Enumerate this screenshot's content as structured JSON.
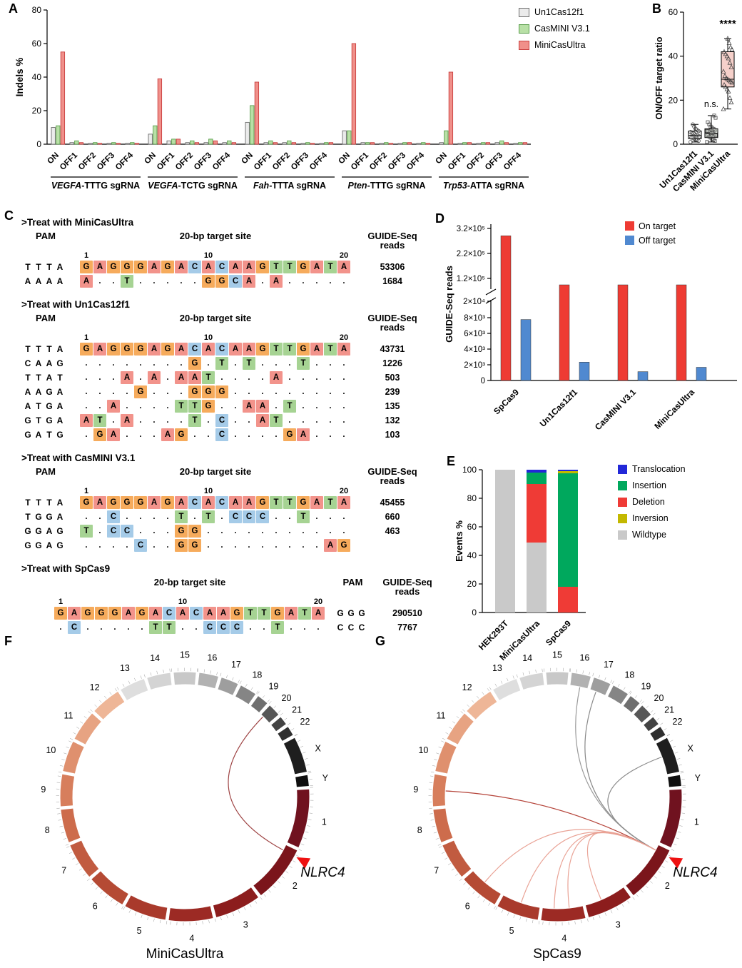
{
  "panel_letters": {
    "a": "A",
    "b": "B",
    "c": "C",
    "d": "D",
    "e": "E",
    "f": "F",
    "g": "G"
  },
  "chart_data": [
    {
      "id": "A",
      "type": "bar",
      "ylabel": "Indels %",
      "ylim": [
        0,
        80
      ],
      "yticks": [
        0,
        20,
        40,
        60,
        80
      ],
      "group_categories": [
        "ON",
        "OFF1",
        "OFF2",
        "OFF3",
        "OFF4"
      ],
      "groups": [
        {
          "gene": "VEGFA",
          "rest": "-TTTG sgRNA"
        },
        {
          "gene": "VEGFA",
          "rest": "-TCTG sgRNA"
        },
        {
          "gene": "Fah",
          "rest": "-TTTA sgRNA"
        },
        {
          "gene": "Pten",
          "rest": "-TTTG sgRNA"
        },
        {
          "gene": "Trp53",
          "rest": "-ATTA sgRNA"
        }
      ],
      "series": [
        {
          "name": "Un1Cas12f1",
          "color": "#ebebeb",
          "border": "#6e6e6e",
          "values": [
            [
              10,
              1,
              0.5,
              0.5,
              0.5
            ],
            [
              6,
              2,
              1,
              1,
              1
            ],
            [
              13,
              1,
              1,
              0.5,
              0.5
            ],
            [
              8,
              1,
              0.5,
              0.5,
              0.5
            ],
            [
              1,
              0.5,
              0.5,
              1,
              0.5
            ]
          ]
        },
        {
          "name": "CasMINI V3.1",
          "color": "#b8e0a6",
          "border": "#5a9e4c",
          "values": [
            [
              11,
              2,
              1,
              1,
              1
            ],
            [
              11,
              3,
              2,
              3,
              2
            ],
            [
              23,
              2,
              2,
              1,
              1
            ],
            [
              8,
              1,
              1,
              1,
              1
            ],
            [
              8,
              1,
              1,
              2,
              1
            ]
          ]
        },
        {
          "name": "MiniCasUltra",
          "color": "#f0908a",
          "border": "#c94040",
          "values": [
            [
              55,
              1,
              0.5,
              0.5,
              0.5
            ],
            [
              39,
              3,
              1,
              2,
              1
            ],
            [
              37,
              1,
              1,
              0.5,
              1
            ],
            [
              60,
              1,
              0.5,
              1,
              0.5
            ],
            [
              43,
              1,
              1,
              1,
              1
            ]
          ]
        }
      ]
    },
    {
      "id": "B",
      "type": "box",
      "ylabel": "ON/OFF target ratio",
      "ylim": [
        0,
        60
      ],
      "yticks": [
        0,
        20,
        40,
        60
      ],
      "categories": [
        "Un1Cas12f1",
        "CasMINI V3.1",
        "MiniCasUltra"
      ],
      "boxes": [
        {
          "min": 1,
          "q1": 2.5,
          "median": 4,
          "q3": 6,
          "max": 9,
          "fill": "#f2f2f2",
          "marker": "circle",
          "annotation": "",
          "points": [
            1,
            1.5,
            2,
            2,
            2.5,
            3,
            3,
            3.5,
            4,
            4,
            4.5,
            5,
            5,
            5.5,
            6,
            6.5,
            7,
            8,
            9
          ]
        },
        {
          "min": 1,
          "q1": 3,
          "median": 5,
          "q3": 7,
          "max": 13,
          "fill": "#edf2ea",
          "marker": "square",
          "annotation": "n.s.",
          "points": [
            1,
            1.5,
            2,
            2.5,
            3,
            3.5,
            4,
            4,
            4.5,
            5,
            5,
            5.5,
            6,
            6,
            6.5,
            7,
            7.5,
            8,
            9,
            10,
            12,
            13
          ]
        },
        {
          "min": 16,
          "q1": 26,
          "median": 29.5,
          "q3": 42,
          "max": 48,
          "fill": "#f5d0ca",
          "marker": "triangle",
          "annotation": "****",
          "points": [
            16,
            19,
            21,
            24,
            25,
            26,
            27,
            28,
            28.5,
            29,
            29.5,
            30,
            31,
            33,
            35,
            37,
            39,
            40,
            41,
            42,
            43,
            44,
            46,
            48
          ]
        }
      ]
    },
    {
      "id": "D",
      "type": "bar",
      "ylabel": "GUIDE-Seq reads",
      "categories": [
        "SpCas9",
        "Un1Cas12f1",
        "CasMINI V3.1",
        "MiniCasUltra"
      ],
      "series": [
        {
          "name": "On target",
          "color": "#ee3b33",
          "values": [
            290510,
            43731,
            45455,
            53306
          ]
        },
        {
          "name": "Off target",
          "color": "#5089d0",
          "values": [
            7767,
            2338,
            1123,
            1684
          ]
        }
      ],
      "broken_axis": {
        "lower_ticks": [
          "0",
          "2×10³",
          "4×10³",
          "6×10³",
          "8×10³",
          "2×10⁴"
        ],
        "lower_values": [
          0,
          2000,
          4000,
          6000,
          8000,
          20000
        ],
        "upper_ticks": [
          "1.2×10⁵",
          "2.2×10⁵",
          "3.2×10⁵"
        ],
        "upper_values": [
          120000,
          220000,
          320000
        ]
      }
    },
    {
      "id": "E",
      "type": "stacked_bar",
      "ylabel": "Events %",
      "ylim": [
        0,
        100
      ],
      "yticks": [
        0,
        20,
        40,
        60,
        80,
        100
      ],
      "categories": [
        "HEK293T",
        "MiniCasUltra",
        "SpCas9"
      ],
      "series": [
        {
          "name": "Wildtype",
          "color": "#c9c9c9",
          "values": [
            100,
            49,
            0
          ]
        },
        {
          "name": "Deletion",
          "color": "#ef3b36",
          "values": [
            0,
            41,
            18
          ]
        },
        {
          "name": "Insertion",
          "color": "#00a85d",
          "values": [
            0,
            8,
            79.5
          ]
        },
        {
          "name": "Inversion",
          "color": "#c3b800",
          "values": [
            0,
            0,
            1.5
          ]
        },
        {
          "name": "Translocation",
          "color": "#2228d8",
          "values": [
            0,
            2,
            1
          ]
        }
      ],
      "legend_order": [
        "Translocation",
        "Insertion",
        "Deletion",
        "Inversion",
        "Wildtype"
      ]
    }
  ],
  "panel_c": {
    "base_colors": {
      "A": "#f2938b",
      "G": "#f6ab5c",
      "C": "#a5cbe8",
      "T": "#a6d393"
    },
    "blocks": [
      {
        "title": ">Treat with MiniCasUltra",
        "pam_side": "left",
        "headers": {
          "pam": "PAM",
          "site": "20-bp target site",
          "reads": "GUIDE-Seq reads"
        },
        "ruler": [
          "1",
          "10",
          "20"
        ],
        "rows": [
          {
            "pam": "TTTA",
            "seq": "GAGGGAGACACAAGTTGATA",
            "reads": "53306",
            "ref": true
          },
          {
            "pam": "AAAA",
            "seq": "A..T.....GGCA.A.....",
            "reads": "1684"
          }
        ]
      },
      {
        "title": ">Treat with Un1Cas12f1",
        "pam_side": "left",
        "headers": {
          "pam": "PAM",
          "site": "20-bp target site",
          "reads": "GUIDE-Seq\nreads"
        },
        "ruler": [
          "1",
          "10",
          "20"
        ],
        "rows": [
          {
            "pam": "TTTA",
            "seq": "GAGGGAGACACAAGTTGATA",
            "reads": "43731",
            "ref": true
          },
          {
            "pam": "CAAG",
            "seq": "........G.T.T...T...",
            "reads": "1226"
          },
          {
            "pam": "TTAT",
            "seq": "...A.A.AAT....A.....",
            "reads": "503"
          },
          {
            "pam": "AAGA",
            "seq": "....G...GGG.........",
            "reads": "239"
          },
          {
            "pam": "ATGA",
            "seq": "..A....TTG..AA.T....",
            "reads": "135"
          },
          {
            "pam": "GTGA",
            "seq": "AT.A....T.C..AT.....",
            "reads": "132"
          },
          {
            "pam": "GATG",
            "seq": ".GA...AG..C....GA...",
            "reads": "103"
          }
        ]
      },
      {
        "title": ">Treat with CasMINI V3.1",
        "pam_side": "left",
        "headers": {
          "pam": "PAM",
          "site": "20-bp target site",
          "reads": "GUIDE-Seq\nreads"
        },
        "ruler": [
          "1",
          "10",
          "20"
        ],
        "rows": [
          {
            "pam": "TTTA",
            "seq": "GAGGGAGACACAAGTTGATA",
            "reads": "45455",
            "ref": true
          },
          {
            "pam": "TGGA",
            "seq": "..C....T.T.CCC..T...",
            "reads": "660"
          },
          {
            "pam": "GGAG",
            "seq": "T.CC...GG...........",
            "reads": "463"
          },
          {
            "pam": "GGAG",
            "seq": "....C..GG.........AG",
            "reads": ""
          }
        ]
      },
      {
        "title": ">Treat with SpCas9",
        "pam_side": "right",
        "headers": {
          "pam": "PAM",
          "site": "20-bp target site",
          "reads": "GUIDE-Seq\nreads"
        },
        "ruler": [
          "1",
          "10",
          "20"
        ],
        "rows": [
          {
            "pam": "GGG",
            "seq": "GAGGGAGACACAAGTTGATA",
            "reads": "290510",
            "ref": true
          },
          {
            "pam": "CCC",
            "seq": ".C.....TT..CCC..T...",
            "reads": "7767"
          }
        ]
      }
    ]
  },
  "circos": {
    "gene_label": "NLRC4",
    "gene_anchor": {
      "chr": "2",
      "frac": 0.13
    },
    "marker_color": "#ee1111",
    "chromosomes": [
      {
        "name": "1",
        "size": 249,
        "color": "#70121f"
      },
      {
        "name": "2",
        "size": 243,
        "color": "#7b151b"
      },
      {
        "name": "3",
        "size": 198,
        "color": "#8c1d1d"
      },
      {
        "name": "4",
        "size": 190,
        "color": "#9c2a24"
      },
      {
        "name": "5",
        "size": 182,
        "color": "#a93a2c"
      },
      {
        "name": "6",
        "size": 171,
        "color": "#b54a34"
      },
      {
        "name": "7",
        "size": 159,
        "color": "#c15b40"
      },
      {
        "name": "8",
        "size": 146,
        "color": "#cd6c4c"
      },
      {
        "name": "9",
        "size": 141,
        "color": "#d77e5c"
      },
      {
        "name": "10",
        "size": 136,
        "color": "#df906e"
      },
      {
        "name": "11",
        "size": 135,
        "color": "#e7a382"
      },
      {
        "name": "12",
        "size": 134,
        "color": "#eeb697"
      },
      {
        "name": "13",
        "size": 115,
        "color": "#dedede"
      },
      {
        "name": "14",
        "size": 107,
        "color": "#d4d4d4"
      },
      {
        "name": "15",
        "size": 102,
        "color": "#c8c8c8"
      },
      {
        "name": "16",
        "size": 90,
        "color": "#b2b2b2"
      },
      {
        "name": "17",
        "size": 83,
        "color": "#9e9e9e"
      },
      {
        "name": "18",
        "size": 80,
        "color": "#858585"
      },
      {
        "name": "19",
        "size": 59,
        "color": "#6f6f6f"
      },
      {
        "name": "20",
        "size": 63,
        "color": "#575757"
      },
      {
        "name": "21",
        "size": 48,
        "color": "#434343"
      },
      {
        "name": "22",
        "size": 51,
        "color": "#2f2f2f"
      },
      {
        "name": "X",
        "size": 156,
        "color": "#1e1e1e"
      },
      {
        "name": "Y",
        "size": 57,
        "color": "#0f0f0f"
      }
    ],
    "panels": [
      {
        "id": "F",
        "svg": "svgF",
        "title": "MiniCasUltra",
        "arcs": [
          {
            "chr": "20",
            "frac": 0.3,
            "color": "#9e4343"
          }
        ]
      },
      {
        "id": "G",
        "svg": "svgG",
        "title": "SpCas9",
        "arcs": [
          {
            "chr": "17",
            "frac": 0.4,
            "color": "#8a8a8a"
          },
          {
            "chr": "16",
            "frac": 0.55,
            "color": "#9a9a9a"
          },
          {
            "chr": "X",
            "frac": 0.45,
            "color": "#8a8a8a"
          },
          {
            "chr": "9",
            "frac": 0.5,
            "color": "#b5443a"
          },
          {
            "chr": "6",
            "frac": 0.55,
            "color": "#e9a295"
          },
          {
            "chr": "5",
            "frac": 0.5,
            "color": "#e9a295"
          },
          {
            "chr": "4",
            "frac": 0.35,
            "color": "#e9a295"
          },
          {
            "chr": "4",
            "frac": 0.7,
            "color": "#e9a295"
          },
          {
            "chr": "3",
            "frac": 0.6,
            "color": "#e9a295"
          }
        ]
      }
    ]
  }
}
